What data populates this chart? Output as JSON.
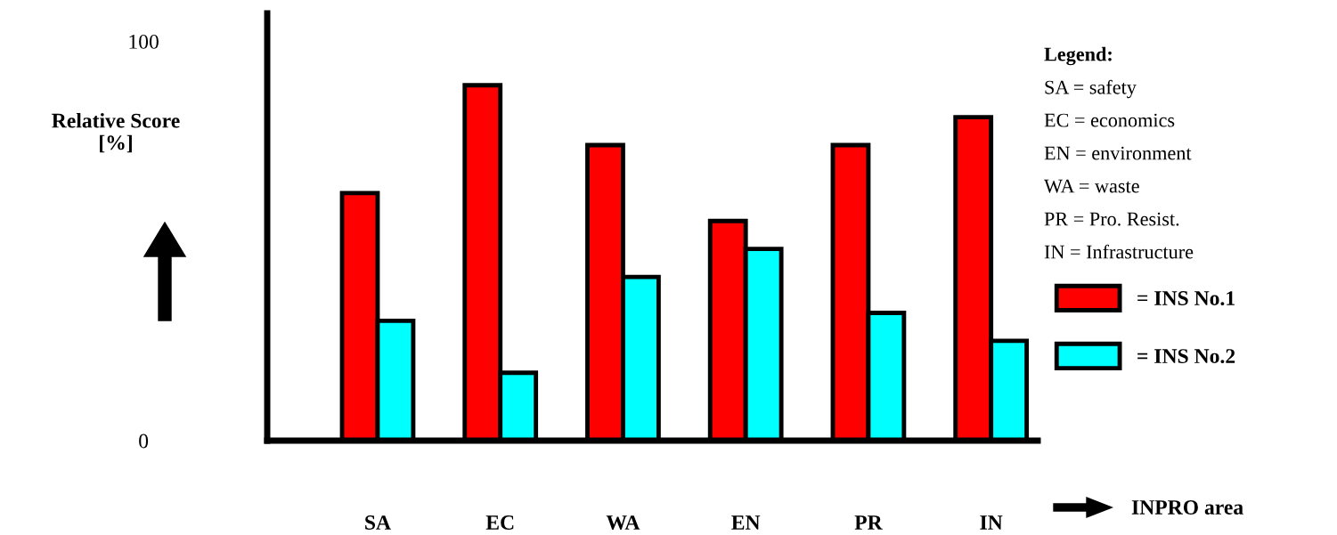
{
  "chart_data": {
    "type": "bar",
    "categories": [
      "SA",
      "EC",
      "WA",
      "EN",
      "PR",
      "IN"
    ],
    "series": [
      {
        "name": "= INS No.1",
        "color": "#ff0000",
        "values": [
          62,
          89,
          74,
          55,
          74,
          81
        ]
      },
      {
        "name": "= INS No.2",
        "color": "#00ffff",
        "values": [
          30,
          17,
          41,
          48,
          32,
          25
        ]
      }
    ],
    "ylabel": "Relative Score\n[%]",
    "xlabel": "INPRO area",
    "ylim": [
      0,
      107
    ],
    "yticks": [
      0,
      100
    ],
    "legend": "right",
    "annotations": [
      "Legend:",
      "SA = safety",
      "EC = economics",
      "EN = environment",
      "WA = waste",
      "PR = Pro. Resist.",
      "IN = Infrastructure"
    ]
  }
}
